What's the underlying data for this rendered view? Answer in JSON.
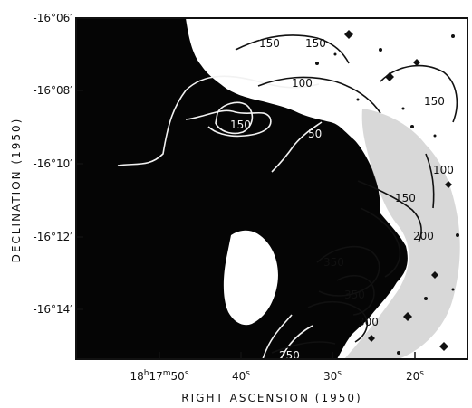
{
  "figure": {
    "xlabel": "RIGHT  ASCENSION (1950)",
    "ylabel": "DECLINATION (1950)",
    "dec_ticks": [
      "-16°06′",
      "-16°08′",
      "-16°10′",
      "-16°12′",
      "-16°14′"
    ],
    "ra_ticks": [
      {
        "h": "18",
        "m": "17",
        "s": "50",
        "full": true
      },
      {
        "s": "40"
      },
      {
        "s": "30"
      },
      {
        "s": "20"
      }
    ],
    "contour_labels": [
      "150",
      "150",
      "100",
      "150",
      "150",
      "50",
      "100",
      "150",
      "200",
      "350",
      "350",
      "300",
      "250"
    ],
    "colors": {
      "frame": "#111111",
      "cloud": "#050505",
      "contour_on_dark": "#f2f2f2",
      "contour_on_light": "#111111",
      "stars": "#9a9a9a"
    }
  }
}
